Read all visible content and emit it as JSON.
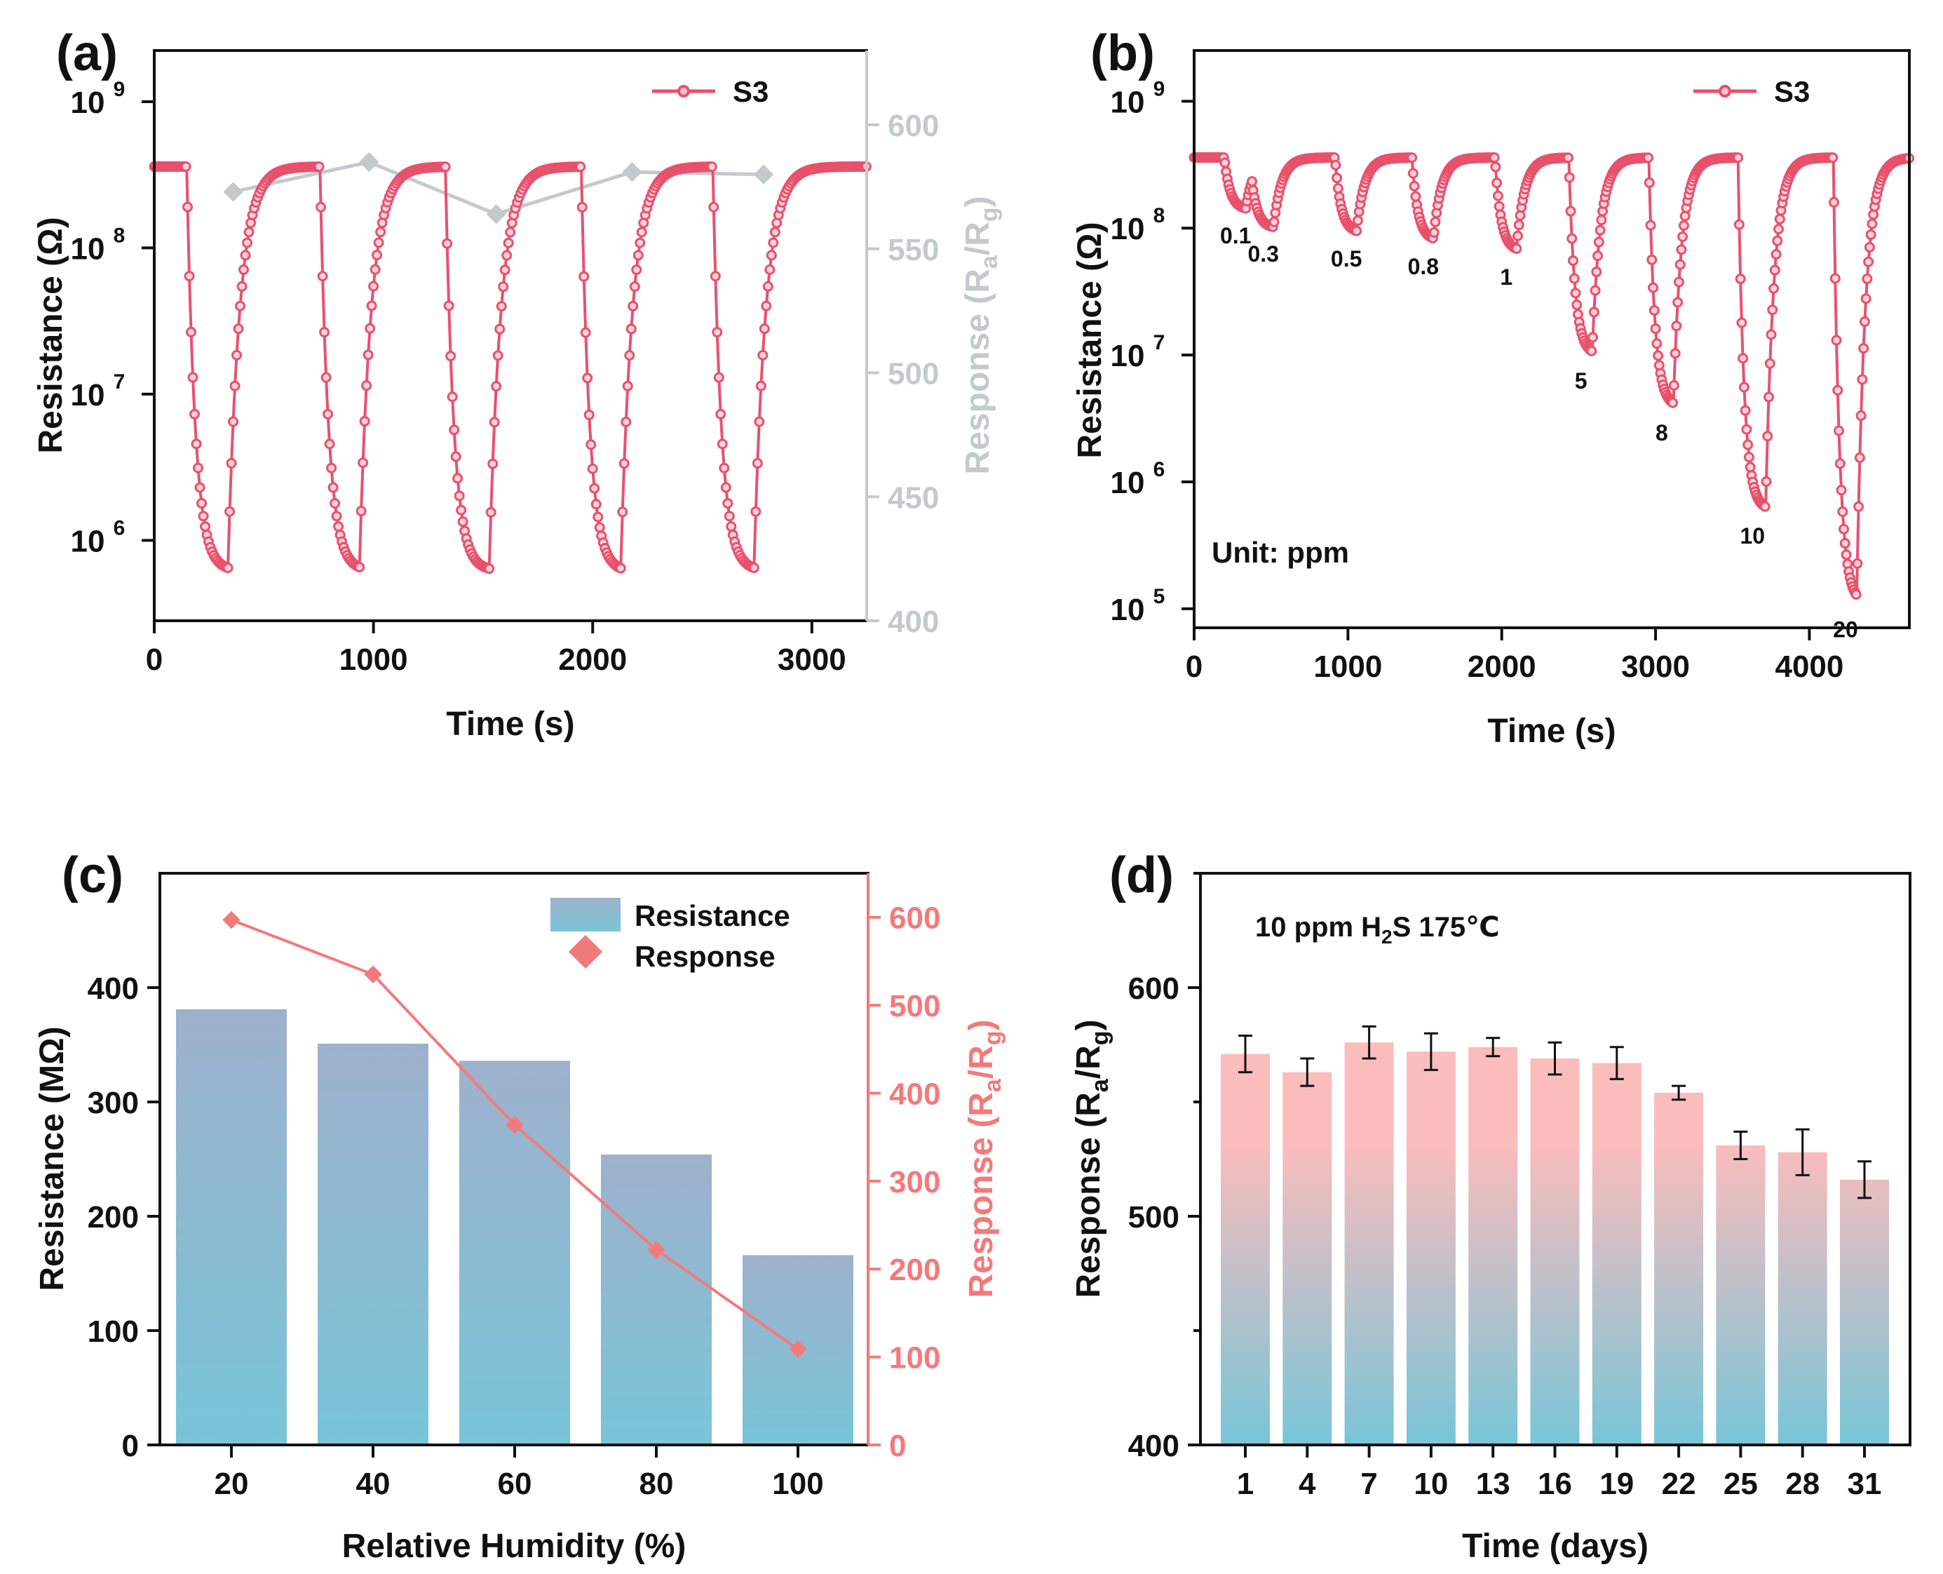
{
  "colors": {
    "s3": "#e8516c",
    "response_gray": "#c4c9cc",
    "response_c": "#f37a7a",
    "bar_top_c": "#9eb1cc",
    "bar_bottom_c": "#79c5d8",
    "bar_top_d": "#fbbcbc",
    "bar_bottom_d": "#79c5d8"
  },
  "chart_data": [
    {
      "panel": "(a)",
      "type": "line",
      "xlabel": "Time (s)",
      "ylabel": "Resistance (Ω)",
      "y2label": "Response (R_a/R_g)",
      "xlim": [
        0,
        3250
      ],
      "ylim_log10": [
        5.45,
        9.35
      ],
      "y2lim": [
        400,
        630
      ],
      "xticks": [
        "0",
        "1000",
        "2000",
        "3000"
      ],
      "yticks": [
        {
          "exp": 6,
          "label": "10"
        },
        {
          "exp": 7,
          "label": "10"
        },
        {
          "exp": 8,
          "label": "10"
        },
        {
          "exp": 9,
          "label": "10"
        }
      ],
      "y2ticks": [
        "400",
        "450",
        "500",
        "550",
        "600"
      ],
      "legend": "S3",
      "baseline_ohm": 360000000,
      "cycles": [
        {
          "on": 150,
          "off": 340,
          "min_ohm": 620000
        },
        {
          "on": 760,
          "off": 940,
          "min_ohm": 620000
        },
        {
          "on": 1330,
          "off": 1530,
          "min_ohm": 620000
        },
        {
          "on": 1950,
          "off": 2130,
          "min_ohm": 610000
        },
        {
          "on": 2550,
          "off": 2740,
          "min_ohm": 620000
        }
      ],
      "response_series": {
        "x": [
          360,
          980,
          1560,
          2180,
          2780
        ],
        "values": [
          573,
          585,
          564,
          581,
          580
        ]
      }
    },
    {
      "panel": "(b)",
      "type": "line",
      "xlabel": "Time (s)",
      "ylabel": "Resistance (Ω)",
      "xlim": [
        0,
        4650
      ],
      "ylim_log10": [
        4.85,
        9.4
      ],
      "xticks": [
        "0",
        "1000",
        "2000",
        "3000",
        "4000"
      ],
      "yticks": [
        {
          "exp": 5,
          "label": "10"
        },
        {
          "exp": 6,
          "label": "10"
        },
        {
          "exp": 7,
          "label": "10"
        },
        {
          "exp": 8,
          "label": "10"
        },
        {
          "exp": 9,
          "label": "10"
        }
      ],
      "legend": "S3",
      "annotation": "Unit: ppm",
      "baseline_ohm": 360000000,
      "pulses": [
        {
          "conc": "0.1",
          "on": 200,
          "off": 340,
          "min_ohm": 140000000
        },
        {
          "conc": "0.3",
          "on": 380,
          "off": 520,
          "min_ohm": 100000000
        },
        {
          "conc": "0.5",
          "on": 920,
          "off": 1060,
          "min_ohm": 92000000
        },
        {
          "conc": "0.8",
          "on": 1420,
          "off": 1560,
          "min_ohm": 80000000
        },
        {
          "conc": "1",
          "on": 1960,
          "off": 2100,
          "min_ohm": 66000000
        },
        {
          "conc": "5",
          "on": 2440,
          "off": 2590,
          "min_ohm": 10000000
        },
        {
          "conc": "8",
          "on": 2960,
          "off": 3120,
          "min_ohm": 3900000
        },
        {
          "conc": "10",
          "on": 3540,
          "off": 3720,
          "min_ohm": 600000
        },
        {
          "conc": "20",
          "on": 4160,
          "off": 4310,
          "min_ohm": 110000
        }
      ]
    },
    {
      "panel": "(c)",
      "type": "bar",
      "xlabel": "Relative Humidity (%)",
      "ylabel": "Resistance (MΩ)",
      "y2label": "Response (R_a/R_g)",
      "categories": [
        "20",
        "40",
        "60",
        "80",
        "100"
      ],
      "ylim": [
        0,
        500
      ],
      "y2lim": [
        0,
        650
      ],
      "yticks": [
        "0",
        "100",
        "200",
        "300",
        "400"
      ],
      "y2ticks": [
        "0",
        "100",
        "200",
        "300",
        "400",
        "500",
        "600"
      ],
      "series": [
        {
          "name": "Resistance",
          "values": [
            381,
            351,
            336,
            254,
            166
          ]
        },
        {
          "name": "Response",
          "values": [
            597,
            535,
            364,
            222,
            109
          ]
        }
      ]
    },
    {
      "panel": "(d)",
      "type": "bar",
      "xlabel": "Time (days)",
      "ylabel": "Response (R_a/R_g)",
      "annotation": "10 ppm H2S 175℃",
      "categories": [
        "1",
        "4",
        "7",
        "10",
        "13",
        "16",
        "19",
        "22",
        "25",
        "28",
        "31"
      ],
      "ylim": [
        400,
        650
      ],
      "yticks": [
        "400",
        "500",
        "600"
      ],
      "values": [
        571,
        563,
        576,
        572,
        574,
        569,
        567,
        554,
        531,
        528,
        516
      ],
      "errors": [
        8,
        6,
        7,
        8,
        4,
        7,
        7,
        3,
        6,
        10,
        8
      ]
    }
  ]
}
